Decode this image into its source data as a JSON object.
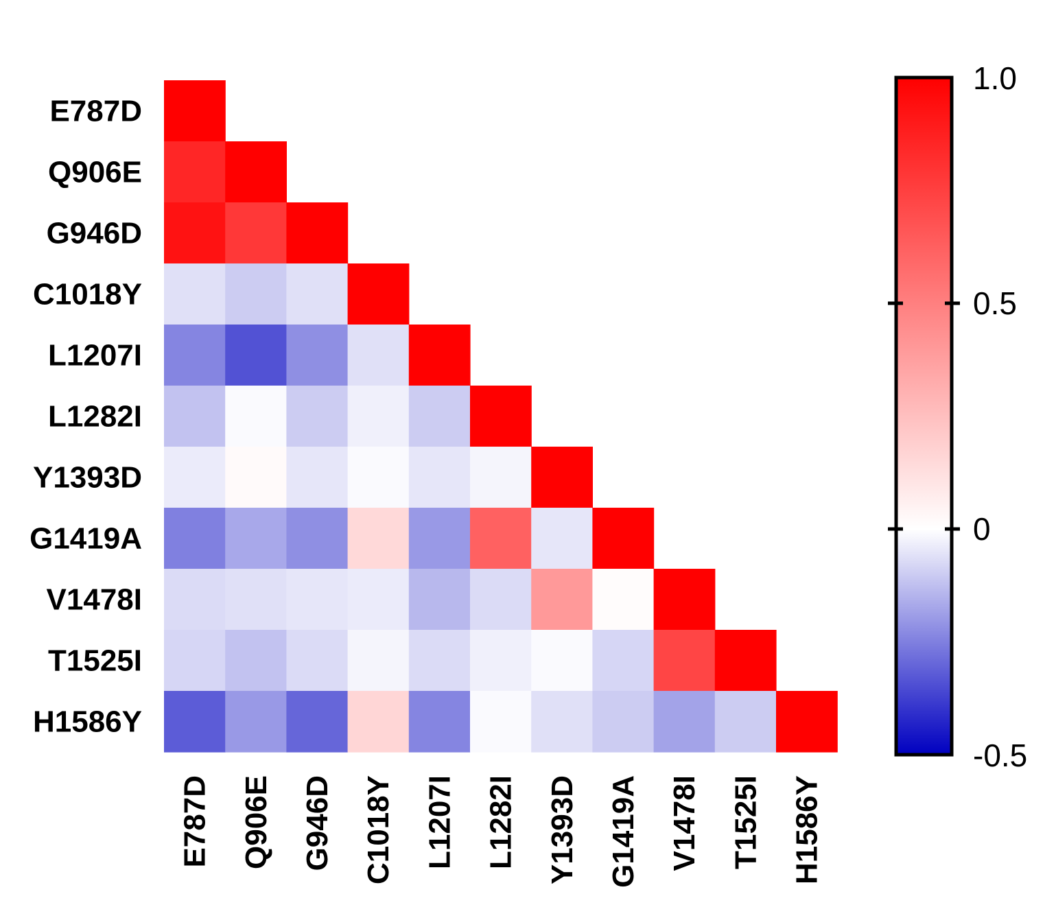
{
  "chart_data": {
    "type": "heatmap",
    "title": "",
    "variants": [
      "E787D",
      "Q906E",
      "G946D",
      "C1018Y",
      "L1207I",
      "L1282I",
      "Y1393D",
      "G1419A",
      "V1478I",
      "T1525I",
      "H1586Y"
    ],
    "matrix": [
      [
        1.0
      ],
      [
        0.85,
        1.0
      ],
      [
        0.93,
        0.78,
        1.0
      ],
      [
        -0.06,
        -0.1,
        -0.06,
        1.0
      ],
      [
        -0.24,
        -0.34,
        -0.22,
        -0.06,
        1.0
      ],
      [
        -0.12,
        -0.01,
        -0.1,
        -0.03,
        -0.1,
        1.0
      ],
      [
        -0.04,
        0.02,
        -0.05,
        -0.01,
        -0.05,
        -0.02,
        1.0
      ],
      [
        -0.25,
        -0.17,
        -0.22,
        0.15,
        -0.2,
        0.62,
        -0.05,
        1.0
      ],
      [
        -0.07,
        -0.06,
        -0.05,
        -0.04,
        -0.14,
        -0.07,
        0.4,
        0.01,
        1.0
      ],
      [
        -0.08,
        -0.12,
        -0.07,
        -0.02,
        -0.07,
        -0.03,
        -0.01,
        -0.08,
        0.73,
        1.0
      ],
      [
        -0.32,
        -0.2,
        -0.3,
        0.16,
        -0.24,
        -0.01,
        -0.06,
        -0.1,
        -0.18,
        -0.1,
        1.0
      ]
    ],
    "colorbar": {
      "min": -0.5,
      "max": 1.0,
      "center": 0,
      "tick_labels": [
        "1.0",
        "0.5",
        "0",
        "-0.5"
      ],
      "tick_values": [
        1.0,
        0.5,
        0,
        -0.5
      ],
      "colors": {
        "low": "#0000c0",
        "mid": "#ffffff",
        "high": "#ff0000"
      }
    }
  }
}
